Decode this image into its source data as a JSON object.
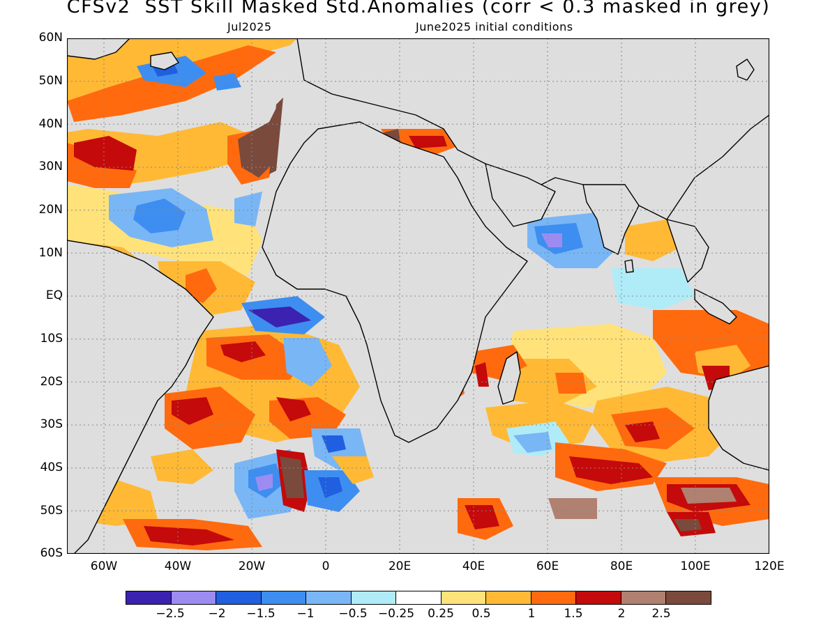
{
  "header": {
    "title": "CFSv2  SST Skill Masked Std.Anomalies (corr < 0.3 masked in grey)",
    "month": "Jul2025",
    "init": "June2025 initial conditions"
  },
  "axes": {
    "lat_labels": [
      "60N",
      "50N",
      "40N",
      "30N",
      "20N",
      "10N",
      "EQ",
      "10S",
      "20S",
      "30S",
      "40S",
      "50S",
      "60S"
    ],
    "lon_labels": [
      "60W",
      "40W",
      "20W",
      "0",
      "20E",
      "40E",
      "60E",
      "80E",
      "100E",
      "120E"
    ]
  },
  "colorbar": {
    "colors": [
      "#3b22b0",
      "#9c8cf2",
      "#1f5fe0",
      "#3d8ef0",
      "#79b6f5",
      "#b0ecf8",
      "#ffffff",
      "#ffe27a",
      "#ffb935",
      "#ff6a0e",
      "#c40a0a",
      "#b08070",
      "#7a4a3c"
    ],
    "labels": [
      "−2.5",
      "−2",
      "−1.5",
      "−1",
      "−0.5",
      "−0.25",
      "0.25",
      "0.5",
      "1",
      "1.5",
      "2",
      "2.5"
    ]
  },
  "map": {
    "domain": {
      "lon": [
        -70,
        120
      ],
      "lat": [
        -60,
        60
      ]
    },
    "mask_color": "#dedede",
    "land_color": "#dedede"
  }
}
